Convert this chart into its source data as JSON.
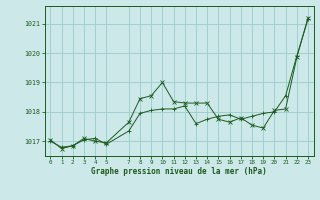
{
  "title": "Graphe pression niveau de la mer (hPa)",
  "background_color": "#cce8e8",
  "grid_color": "#99cccc",
  "line_color": "#1a5c1a",
  "xlim": [
    -0.5,
    23.5
  ],
  "ylim": [
    1016.5,
    1021.6
  ],
  "yticks": [
    1017,
    1018,
    1019,
    1020,
    1021
  ],
  "xticks": [
    0,
    1,
    2,
    3,
    4,
    5,
    7,
    8,
    9,
    10,
    11,
    12,
    13,
    14,
    15,
    16,
    17,
    18,
    19,
    20,
    21,
    22,
    23
  ],
  "series1_x": [
    0,
    1,
    2,
    3,
    4,
    5,
    7,
    8,
    9,
    10,
    11,
    12,
    13,
    14,
    15,
    16,
    17,
    18,
    19,
    20,
    21,
    22,
    23
  ],
  "series1_y": [
    1017.05,
    1016.75,
    1016.85,
    1017.1,
    1017.0,
    1016.95,
    1017.65,
    1018.45,
    1018.55,
    1019.0,
    1018.35,
    1018.3,
    1018.3,
    1018.3,
    1017.75,
    1017.65,
    1017.8,
    1017.55,
    1017.45,
    1018.05,
    1018.1,
    1019.85,
    1021.2
  ],
  "series2_x": [
    0,
    1,
    2,
    3,
    4,
    5,
    7,
    8,
    9,
    10,
    11,
    12,
    13,
    14,
    15,
    16,
    17,
    18,
    19,
    20,
    21,
    22,
    23
  ],
  "series2_y": [
    1017.0,
    1016.8,
    1016.85,
    1017.05,
    1017.1,
    1016.9,
    1017.35,
    1017.95,
    1018.05,
    1018.1,
    1018.1,
    1018.2,
    1017.6,
    1017.75,
    1017.85,
    1017.9,
    1017.75,
    1017.85,
    1017.95,
    1018.0,
    1018.55,
    1019.9,
    1021.15
  ]
}
